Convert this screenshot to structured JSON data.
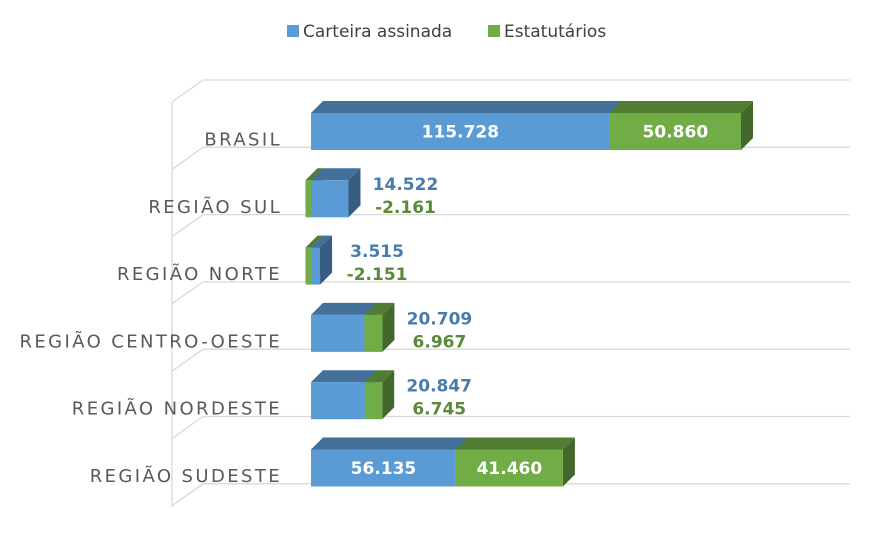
{
  "chart_data": {
    "type": "bar3d_stacked_horizontal",
    "categories": [
      "BRASIL",
      "REGIÃO SUL",
      "REGIÃO NORTE",
      "REGIÃO CENTRO-OESTE",
      "REGIÃO NORDESTE",
      "REGIÃO SUDESTE"
    ],
    "series": [
      {
        "name": "Carteira assinada",
        "color": "#5b9bd5",
        "values": [
          115728,
          14522,
          3515,
          20709,
          20847,
          56135
        ],
        "value_labels": [
          "115.728",
          "14.522",
          "3.515",
          "20.709",
          "20.847",
          "56.135"
        ]
      },
      {
        "name": "Estatutários",
        "color": "#70ad47",
        "values": [
          50860,
          -2161,
          -2151,
          6967,
          6745,
          41460
        ],
        "value_labels": [
          "50.860",
          "-2.161",
          "-2.151",
          "6.967",
          "6.745",
          "41.460"
        ]
      }
    ],
    "legend": "top"
  }
}
